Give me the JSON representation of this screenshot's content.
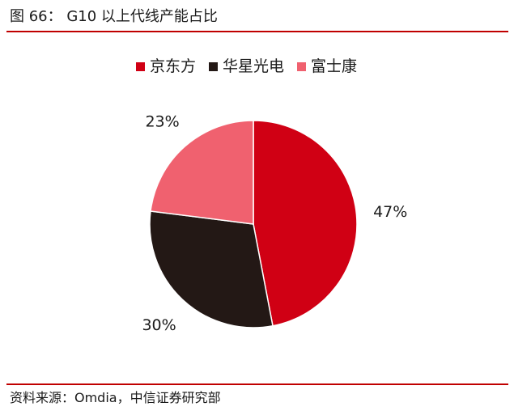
{
  "figure": {
    "title": "图 66：  G10 以上代线产能占比",
    "source": "资料来源：Omdia，中信证券研究部"
  },
  "chart_data": {
    "type": "pie",
    "title": "",
    "legend_position": "top",
    "series": [
      {
        "name": "京东方",
        "value": 47,
        "label": "47%",
        "color": "#d00014"
      },
      {
        "name": "华星光电",
        "value": 30,
        "label": "30%",
        "color": "#231815"
      },
      {
        "name": "富士康",
        "value": 23,
        "label": "23%",
        "color": "#f0616f"
      }
    ]
  }
}
